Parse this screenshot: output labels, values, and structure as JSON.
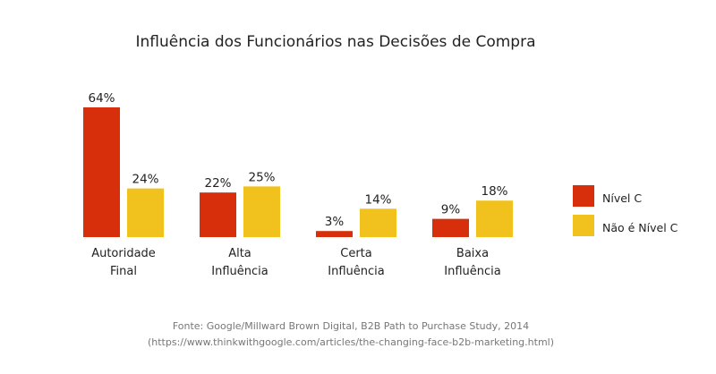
{
  "chart_data": {
    "type": "bar",
    "title": "Influência dos Funcionários nas Decisões de Compra",
    "xlabel": "",
    "ylabel": "",
    "ylim": [
      0,
      64
    ],
    "grid": false,
    "categories": [
      [
        "Autoridade",
        "Final"
      ],
      [
        "Alta",
        "Influência"
      ],
      [
        "Certa",
        "Influência"
      ],
      [
        "Baixa",
        "Influência"
      ]
    ],
    "series": [
      {
        "name": "Nível C",
        "color": "#d72f0b",
        "values": [
          64,
          22,
          3,
          9
        ],
        "labels": [
          "64%",
          "22%",
          "3%",
          "9%"
        ]
      },
      {
        "name": "Não é Nível C",
        "color": "#f1c21d",
        "values": [
          24,
          25,
          14,
          18
        ],
        "labels": [
          "24%",
          "25%",
          "14%",
          "18%"
        ]
      }
    ],
    "legend_position": "right",
    "source": [
      "Fonte: Google/Millward Brown Digital, B2B Path to Purchase Study, 2014",
      "(https://www.thinkwithgoogle.com/articles/the-changing-face-b2b-marketing.html)"
    ]
  }
}
